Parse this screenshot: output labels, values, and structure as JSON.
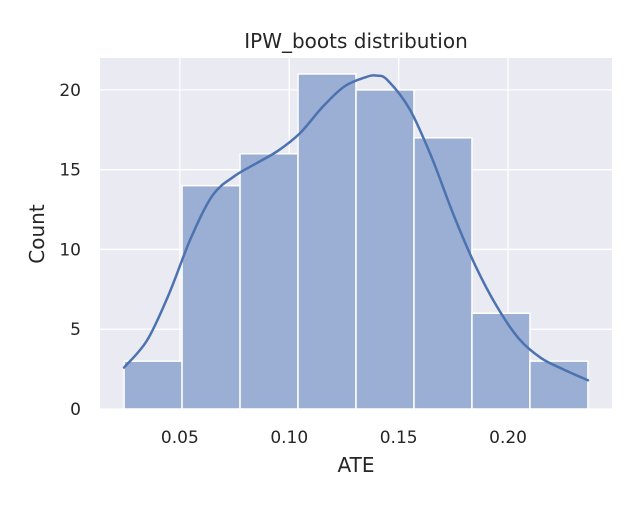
{
  "chart_data": {
    "type": "bar",
    "title": "IPW_boots distribution",
    "xlabel": "ATE",
    "ylabel": "Count",
    "bins": [
      {
        "x0": 0.0245,
        "x1": 0.051,
        "count": 3
      },
      {
        "x0": 0.051,
        "x1": 0.0775,
        "count": 14
      },
      {
        "x0": 0.0775,
        "x1": 0.104,
        "count": 16
      },
      {
        "x0": 0.104,
        "x1": 0.1305,
        "count": 21
      },
      {
        "x0": 0.1305,
        "x1": 0.157,
        "count": 20
      },
      {
        "x0": 0.157,
        "x1": 0.1835,
        "count": 17
      },
      {
        "x0": 0.1835,
        "x1": 0.21,
        "count": 6
      },
      {
        "x0": 0.21,
        "x1": 0.2365,
        "count": 3
      }
    ],
    "kde": {
      "x": [
        0.0245,
        0.035,
        0.045,
        0.055,
        0.065,
        0.075,
        0.085,
        0.095,
        0.105,
        0.115,
        0.125,
        0.135,
        0.14,
        0.145,
        0.155,
        0.165,
        0.175,
        0.185,
        0.195,
        0.205,
        0.215,
        0.225,
        0.2365
      ],
      "y": [
        2.6,
        4.3,
        7.2,
        10.7,
        13.4,
        14.6,
        15.4,
        16.2,
        17.3,
        18.9,
        20.2,
        20.8,
        20.9,
        20.6,
        18.8,
        15.8,
        12.2,
        9.0,
        6.4,
        4.4,
        3.2,
        2.5,
        1.8
      ]
    },
    "xticks": [
      0.05,
      0.1,
      0.15,
      0.2
    ],
    "xtick_labels": [
      "0.05",
      "0.10",
      "0.15",
      "0.20"
    ],
    "yticks": [
      0,
      5,
      10,
      15,
      20
    ],
    "ytick_labels": [
      "0",
      "5",
      "10",
      "15",
      "20"
    ],
    "xlim": [
      0.0135,
      0.2475
    ],
    "ylim": [
      0,
      22
    ],
    "grid": true,
    "colors": {
      "background": "#eaeaf2",
      "grid": "#ffffff",
      "bar_fill": "#9aafd3",
      "bar_edge": "#ffffff",
      "kde_line": "#4c72b0"
    }
  }
}
